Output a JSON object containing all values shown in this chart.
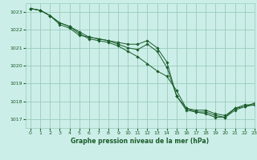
{
  "title": "Graphe pression niveau de la mer (hPa)",
  "bg_color": "#cceee8",
  "grid_color": "#99ccbb",
  "line_color": "#1a5c2a",
  "marker_color": "#1a5c2a",
  "xlim": [
    -0.5,
    23
  ],
  "ylim": [
    1016.5,
    1023.5
  ],
  "yticks": [
    1017,
    1018,
    1019,
    1020,
    1021,
    1022,
    1023
  ],
  "xticks": [
    0,
    1,
    2,
    3,
    4,
    5,
    6,
    7,
    8,
    9,
    10,
    11,
    12,
    13,
    14,
    15,
    16,
    17,
    18,
    19,
    20,
    21,
    22,
    23
  ],
  "series1": [
    1023.2,
    1023.1,
    1022.8,
    1022.4,
    1022.2,
    1021.8,
    1021.5,
    1021.4,
    1021.3,
    1021.1,
    1020.8,
    1020.5,
    1020.1,
    1019.7,
    1019.4,
    1018.6,
    1017.6,
    1017.5,
    1017.5,
    1017.3,
    1017.2,
    1017.6,
    1017.8,
    1017.8
  ],
  "series2": [
    1023.2,
    1023.1,
    1022.8,
    1022.3,
    1022.1,
    1021.7,
    1021.6,
    1021.5,
    1021.4,
    1021.3,
    1021.2,
    1021.2,
    1021.4,
    1021.0,
    1020.2,
    1018.3,
    1017.6,
    1017.4,
    1017.3,
    1017.1,
    1017.1,
    1017.5,
    1017.7,
    1017.9
  ],
  "series3": [
    1023.2,
    1023.1,
    1022.8,
    1022.4,
    1022.2,
    1021.9,
    1021.6,
    1021.5,
    1021.4,
    1021.2,
    1021.0,
    1020.9,
    1021.2,
    1020.8,
    1019.9,
    1018.3,
    1017.5,
    1017.4,
    1017.4,
    1017.2,
    1017.1,
    1017.6,
    1017.7,
    1017.8
  ]
}
